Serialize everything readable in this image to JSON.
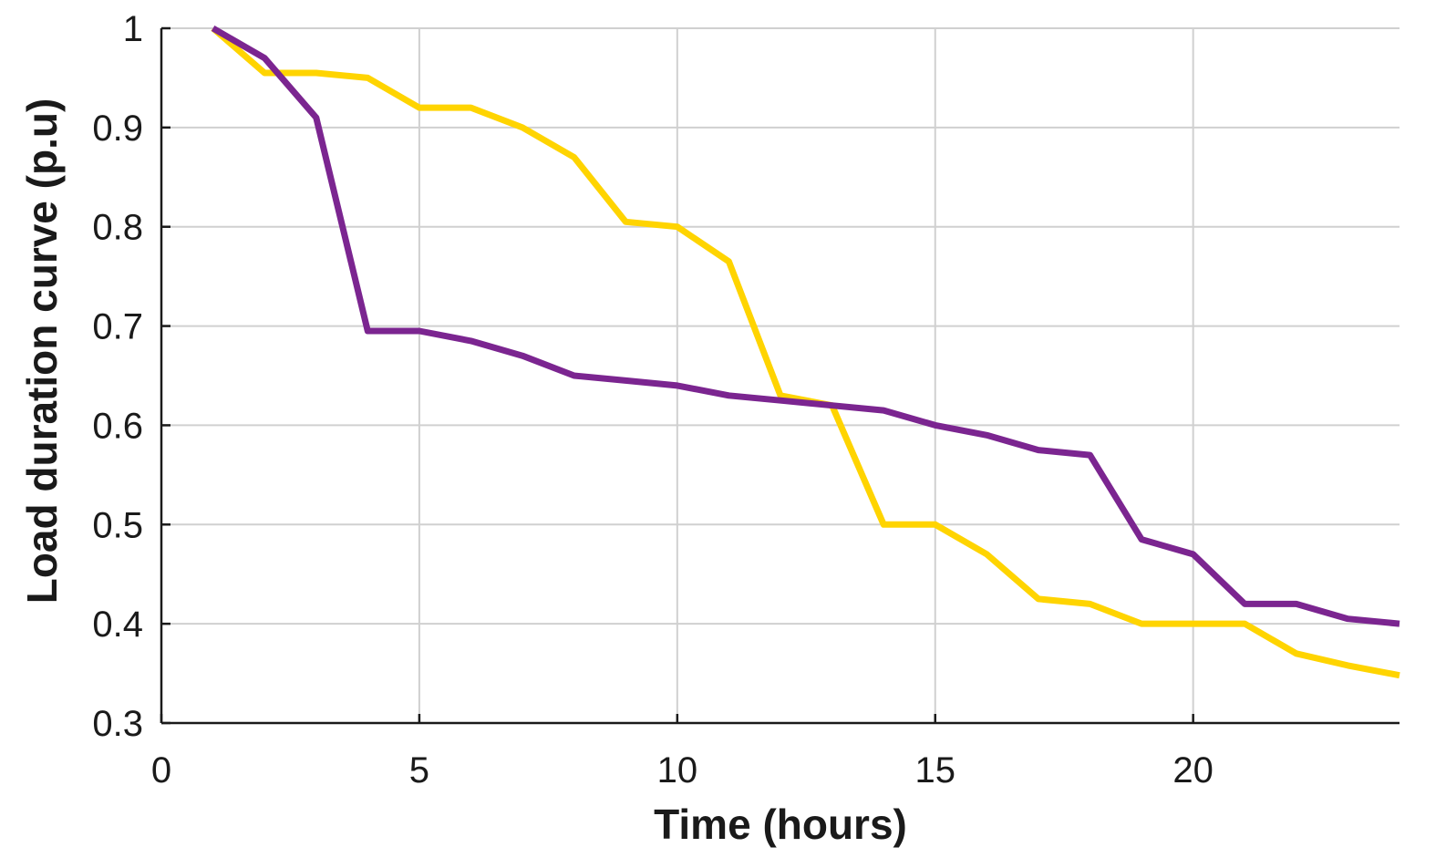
{
  "chart_data": {
    "type": "line",
    "xlabel": "Time (hours)",
    "ylabel": "Load duration curve (p.u)",
    "xlim": [
      0,
      24
    ],
    "ylim": [
      0.3,
      1.0
    ],
    "xticks": [
      0,
      5,
      10,
      15,
      20
    ],
    "yticks": [
      0.3,
      0.4,
      0.5,
      0.6,
      0.7,
      0.8,
      0.9,
      1.0
    ],
    "xtick_labels": [
      "0",
      "5",
      "10",
      "15",
      "20"
    ],
    "ytick_labels": [
      "0.3",
      "0.4",
      "0.5",
      "0.6",
      "0.7",
      "0.8",
      "0.9",
      "1"
    ],
    "grid": true,
    "series": [
      {
        "color": "#ffd400",
        "x": [
          1,
          2,
          3,
          4,
          5,
          6,
          7,
          8,
          9,
          10,
          11,
          12,
          13,
          14,
          15,
          16,
          17,
          18,
          19,
          20,
          21,
          22,
          23,
          24
        ],
        "values": [
          1.0,
          0.955,
          0.955,
          0.95,
          0.92,
          0.92,
          0.9,
          0.87,
          0.805,
          0.8,
          0.765,
          0.63,
          0.62,
          0.5,
          0.5,
          0.47,
          0.425,
          0.42,
          0.4,
          0.4,
          0.4,
          0.37,
          0.358,
          0.348
        ]
      },
      {
        "color": "#7b2590",
        "x": [
          1,
          2,
          3,
          4,
          5,
          6,
          7,
          8,
          9,
          10,
          11,
          12,
          13,
          14,
          15,
          16,
          17,
          18,
          19,
          20,
          21,
          22,
          23,
          24
        ],
        "values": [
          1.0,
          0.97,
          0.91,
          0.695,
          0.695,
          0.685,
          0.67,
          0.65,
          0.645,
          0.64,
          0.63,
          0.625,
          0.62,
          0.615,
          0.6,
          0.59,
          0.575,
          0.57,
          0.485,
          0.47,
          0.42,
          0.42,
          0.405,
          0.4
        ]
      }
    ]
  }
}
